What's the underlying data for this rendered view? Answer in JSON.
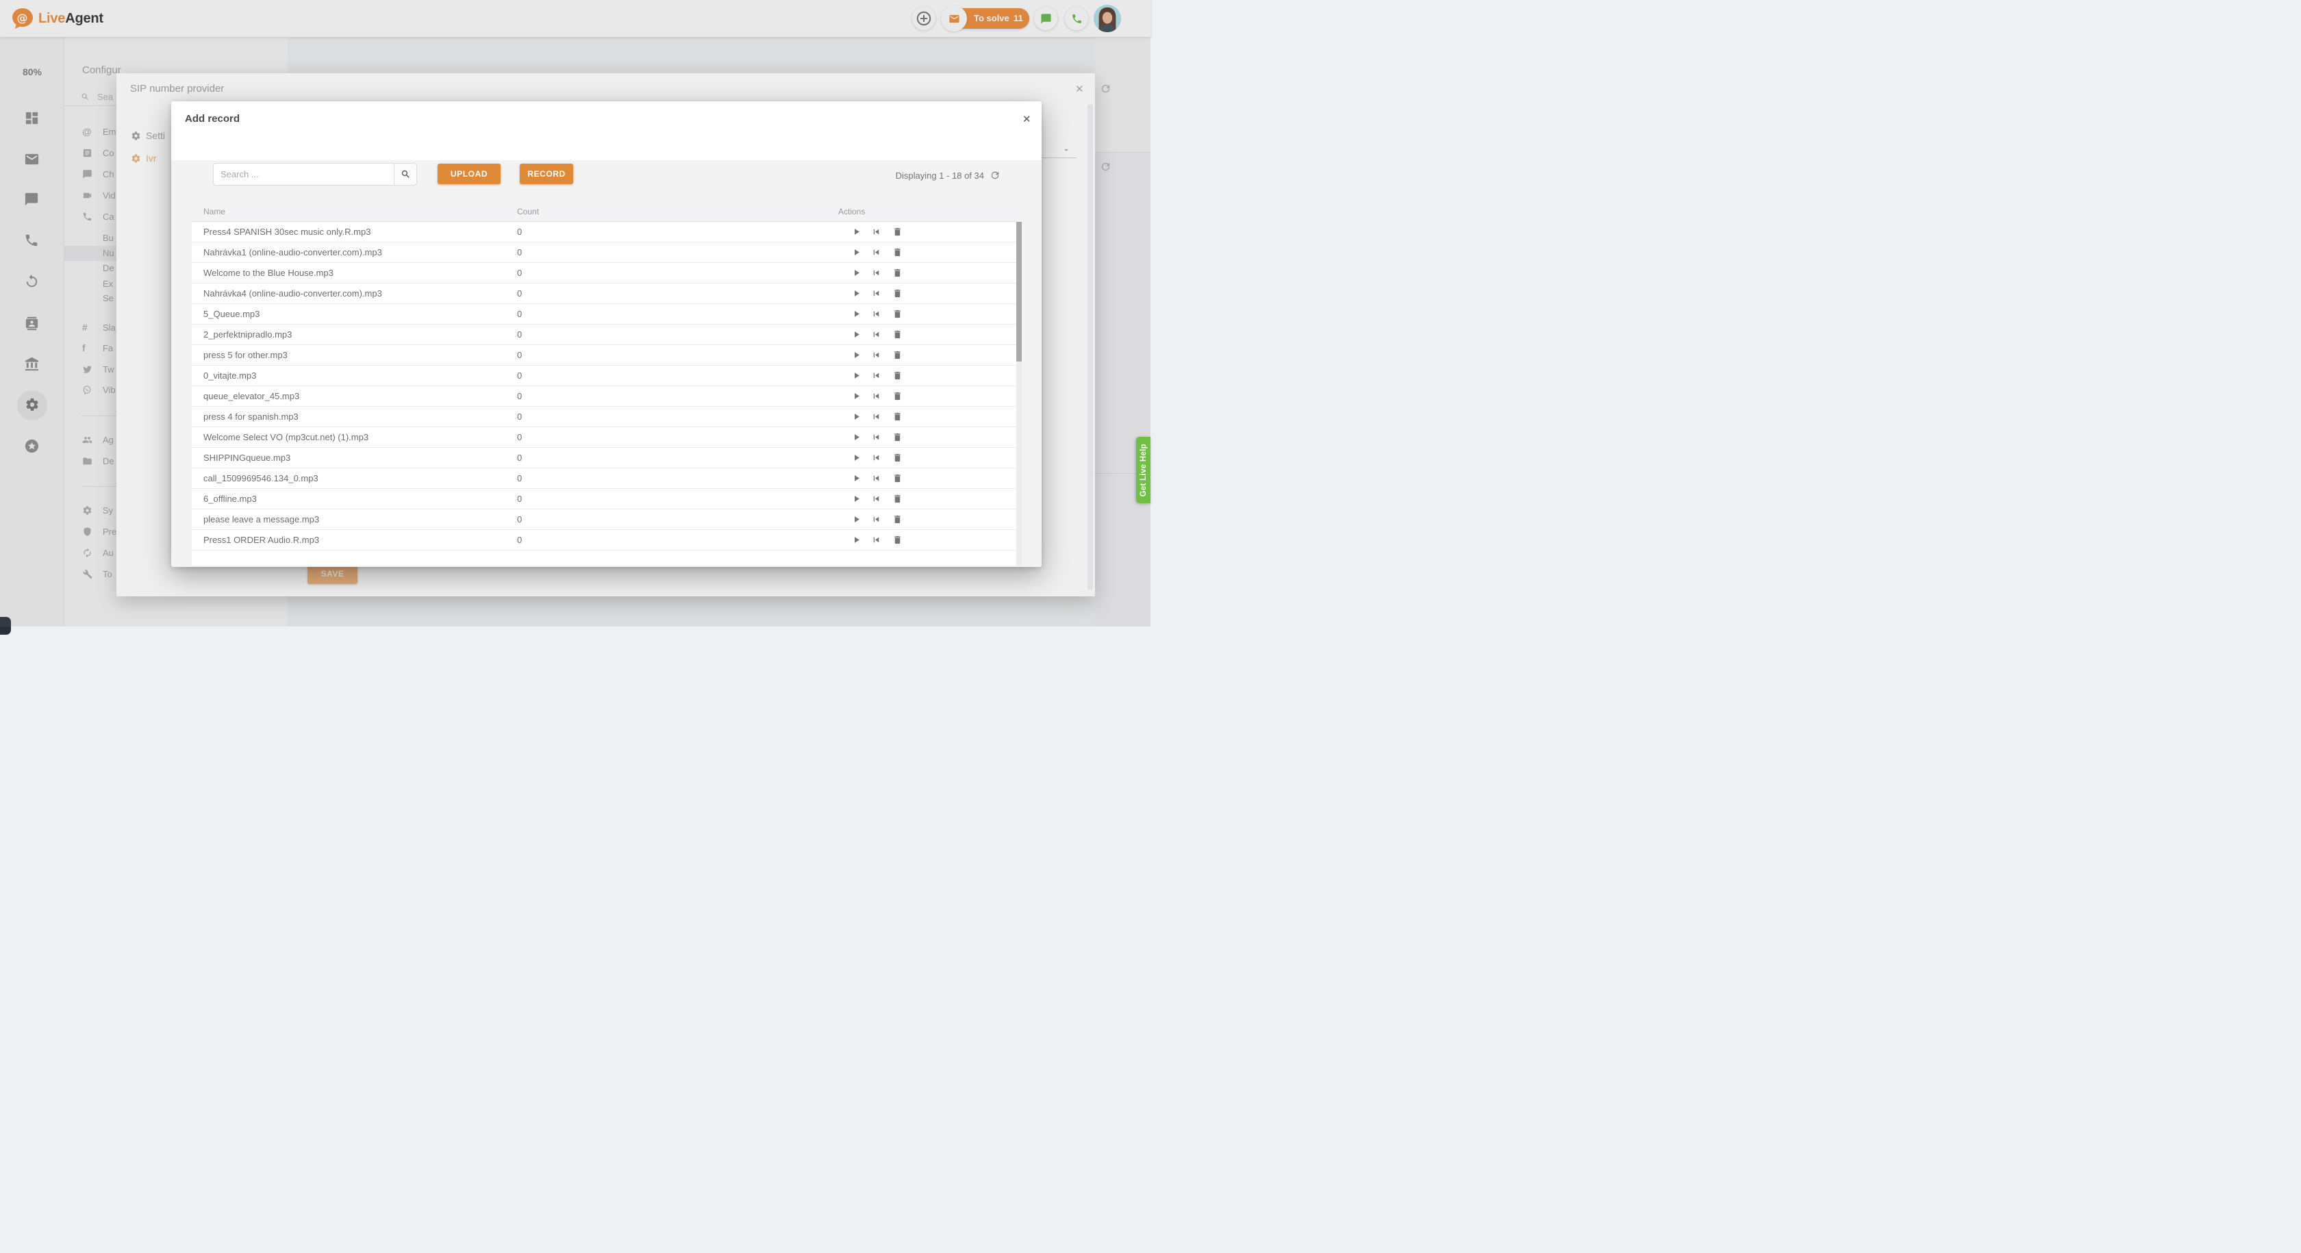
{
  "colors": {
    "accent": "#ef8b33",
    "accent_button": "#e08a38",
    "accent_dim": "#ecb078",
    "green": "#71bf45",
    "green_icon": "#62b845"
  },
  "header": {
    "brand_live": "Live",
    "brand_agent": "Agent",
    "to_solve_label": "To solve",
    "to_solve_count": "11",
    "action_icons": [
      "plus-icon",
      "envelope-icon",
      "chat-icon",
      "phone-icon",
      "avatar"
    ]
  },
  "sidebar": {
    "usage": "80%",
    "items": [
      {
        "icon": "dashboard"
      },
      {
        "icon": "mail"
      },
      {
        "icon": "chat"
      },
      {
        "icon": "phone"
      },
      {
        "icon": "sync"
      },
      {
        "icon": "contacts"
      },
      {
        "icon": "bank"
      },
      {
        "icon": "gear",
        "active": true
      },
      {
        "icon": "star"
      }
    ]
  },
  "settings_panel": {
    "title": "Configur",
    "search_placeholder": "Sea",
    "items": [
      {
        "icon": "at",
        "label": "Em"
      },
      {
        "icon": "article",
        "label": "Co"
      },
      {
        "icon": "chat",
        "label": "Ch"
      },
      {
        "icon": "videocam",
        "label": "Vid"
      },
      {
        "icon": "phone",
        "label": "Ca"
      },
      {
        "icon": "",
        "label": "Bu"
      },
      {
        "icon": "",
        "label": "Nu",
        "active": true
      },
      {
        "icon": "",
        "label": "De"
      },
      {
        "icon": "",
        "label": "Ex"
      },
      {
        "icon": "",
        "label": "Se"
      },
      {
        "icon": "slack",
        "label": "Sla"
      },
      {
        "icon": "facebook",
        "label": "Fa"
      },
      {
        "icon": "twitter",
        "label": "Tw"
      },
      {
        "icon": "viber",
        "label": "Vib"
      },
      {
        "divider": true
      },
      {
        "icon": "people",
        "label": "Ag"
      },
      {
        "icon": "folder",
        "label": "De"
      },
      {
        "divider": true
      },
      {
        "icon": "gear",
        "label": "Sy"
      },
      {
        "icon": "shield",
        "label": "Pre"
      },
      {
        "icon": "autorenew",
        "label": "Au"
      },
      {
        "icon": "wrench",
        "label": "To"
      }
    ]
  },
  "sip_dialog": {
    "title": "SIP number provider",
    "nav": [
      {
        "icon": "gear",
        "label": "Setti"
      },
      {
        "icon": "gear",
        "label": "Ivr",
        "active": true
      }
    ],
    "save_label": "SAVE"
  },
  "modal": {
    "title": "Add record",
    "search_placeholder": "Search ...",
    "upload_label": "UPLOAD",
    "record_label": "RECORD",
    "displaying": "Displaying 1 - 18 of 34",
    "columns": [
      "Name",
      "Count",
      "Actions"
    ],
    "row_action_icons": [
      "play",
      "skip-to-start",
      "trash"
    ],
    "rows": [
      {
        "name": "Press4 SPANISH 30sec music only.R.mp3",
        "count": "0"
      },
      {
        "name": "Nahrávka1 (online-audio-converter.com).mp3",
        "count": "0"
      },
      {
        "name": "Welcome to the Blue House.mp3",
        "count": "0"
      },
      {
        "name": "Nahrávka4 (online-audio-converter.com).mp3",
        "count": "0"
      },
      {
        "name": "5_Queue.mp3",
        "count": "0"
      },
      {
        "name": "2_perfektnipradlo.mp3",
        "count": "0"
      },
      {
        "name": "press 5 for other.mp3",
        "count": "0"
      },
      {
        "name": "0_vitajte.mp3",
        "count": "0"
      },
      {
        "name": "queue_elevator_45.mp3",
        "count": "0"
      },
      {
        "name": "press 4 for spanish.mp3",
        "count": "0"
      },
      {
        "name": "Welcome Select VO (mp3cut.net) (1).mp3",
        "count": "0"
      },
      {
        "name": "SHIPPINGqueue.mp3",
        "count": "0"
      },
      {
        "name": "call_1509969546.134_0.mp3",
        "count": "0"
      },
      {
        "name": "6_offline.mp3",
        "count": "0"
      },
      {
        "name": "please leave a message.mp3",
        "count": "0"
      },
      {
        "name": "Press1 ORDER Audio.R.mp3",
        "count": "0"
      }
    ]
  },
  "live_help": {
    "label": "Get Live Help"
  },
  "icons": {
    "close": "✕"
  }
}
